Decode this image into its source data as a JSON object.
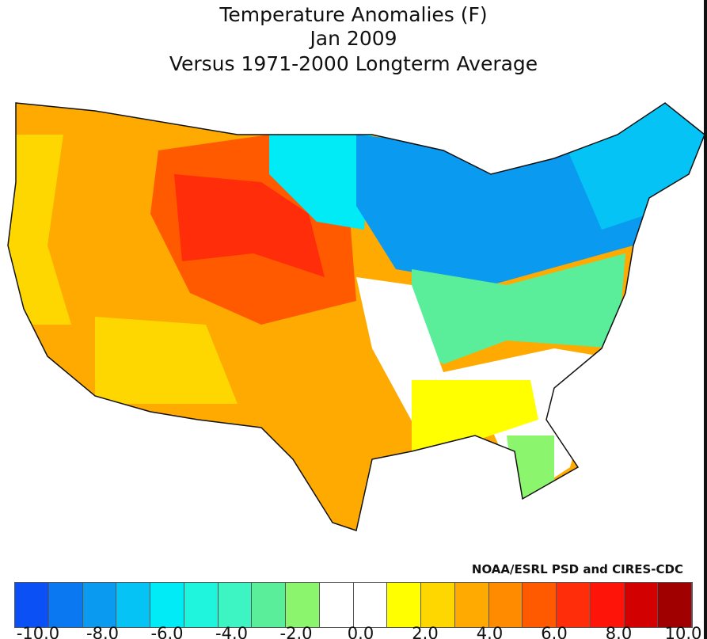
{
  "title_lines": [
    "Temperature Anomalies (F)",
    "Jan 2009",
    "Versus 1971-2000 Longterm Average"
  ],
  "credit": "NOAA/ESRL PSD and CIRES-CDC",
  "colorbar": {
    "colors": [
      "#0a1efa",
      "#0a50f5",
      "#0a78f0",
      "#0a9bf0",
      "#05c3f5",
      "#00ebf5",
      "#1ef5dc",
      "#3cf5c3",
      "#5aee9b",
      "#8cf56e",
      "#ffffff",
      "#ffffff",
      "#ffff00",
      "#ffd700",
      "#ffaa00",
      "#ff8c00",
      "#ff5a00",
      "#ff2d0a",
      "#ff140a",
      "#d20000",
      "#a00000",
      "#8c0000"
    ],
    "tick_labels": [
      "-10.0",
      "-8.0",
      "-6.0",
      "-4.0",
      "-2.0",
      "0.0",
      "2.0",
      "4.0",
      "6.0",
      "8.0",
      "10.0"
    ]
  },
  "map_regions": [
    {
      "region": "west",
      "color": "#ffaa00"
    },
    {
      "region": "pacific-coast",
      "color": "#ffd700"
    },
    {
      "region": "rockies",
      "color": "#ff5a00"
    },
    {
      "region": "wyoming-core",
      "color": "#ff2d0a"
    },
    {
      "region": "southwest",
      "color": "#ffd700"
    },
    {
      "region": "texas",
      "color": "#ffaa00"
    },
    {
      "region": "plains-north",
      "color": "#00ebf5"
    },
    {
      "region": "great-lakes",
      "color": "#0a9bf0"
    },
    {
      "region": "northeast",
      "color": "#05c3f5"
    },
    {
      "region": "mid-atlantic",
      "color": "#5aee9b"
    },
    {
      "region": "southeast",
      "color": "#ffffff"
    },
    {
      "region": "gulf",
      "color": "#ffff00"
    },
    {
      "region": "florida",
      "color": "#8cf56e"
    }
  ]
}
